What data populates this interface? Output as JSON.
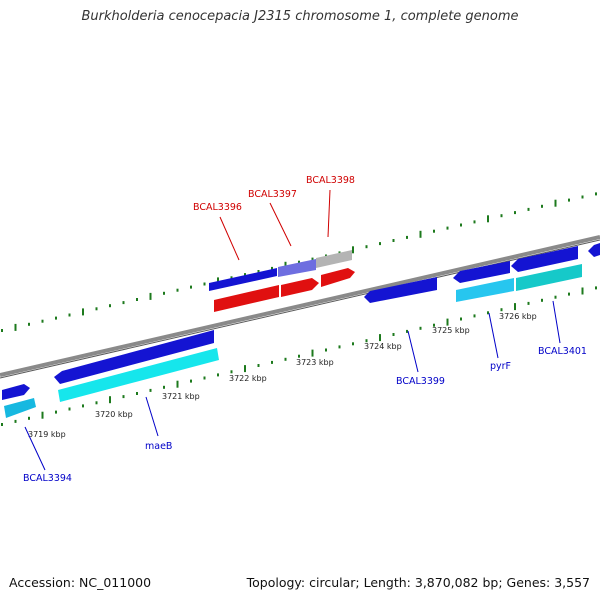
{
  "title": "Burkholderia cenocepacia J2315 chromosome 1, complete genome",
  "footer": {
    "accession": "Accession: NC_011000",
    "topology": "Topology: circular; Length: 3,870,082 bp; Genes: 3,557"
  },
  "colors": {
    "backbone": "#8a8a8a",
    "tick": "#1d7a1d",
    "gene_blue": "#1414d2",
    "gene_cyan": "#16d6e6",
    "gene_red": "#e01010",
    "gene_grey": "#b4b4b4",
    "label_red": "#d00000",
    "label_blue": "#0000c8"
  },
  "scale_labels": [
    "3719 kbp",
    "3720 kbp",
    "3721 kbp",
    "3722 kbp",
    "3723 kbp",
    "3724 kbp",
    "3725 kbp",
    "3726 kbp"
  ],
  "gene_labels": [
    "BCAL3394",
    "maeB",
    "BCAL3396",
    "BCAL3397",
    "BCAL3398",
    "BCAL3399",
    "pyrF",
    "BCAL3401"
  ]
}
